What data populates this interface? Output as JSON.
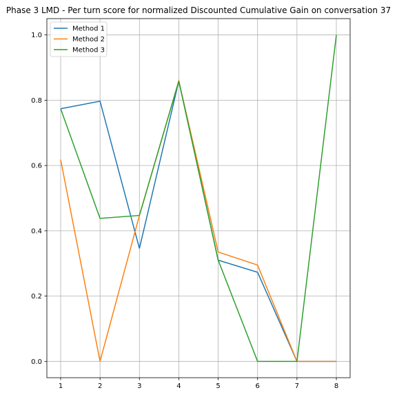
{
  "chart_data": {
    "type": "line",
    "title": "Phase 3 LMD - Per turn score for normalized Discounted Cumulative Gain on conversation 37",
    "xlabel": "",
    "ylabel": "",
    "x": [
      1,
      2,
      3,
      4,
      5,
      6,
      7,
      8
    ],
    "xlim": [
      0.65,
      8.35
    ],
    "ylim": [
      -0.05,
      1.05
    ],
    "xticks": [
      1,
      2,
      3,
      4,
      5,
      6,
      7,
      8
    ],
    "yticks": [
      0.0,
      0.2,
      0.4,
      0.6,
      0.8,
      1.0
    ],
    "ytick_labels": [
      "0.0",
      "0.2",
      "0.4",
      "0.6",
      "0.8",
      "1.0"
    ],
    "grid": true,
    "legend_position": "upper left",
    "series": [
      {
        "name": "Method 1",
        "color": "#1f77b4",
        "values": [
          0.774,
          0.797,
          0.346,
          0.859,
          0.31,
          0.273,
          0.0,
          0.0
        ]
      },
      {
        "name": "Method 2",
        "color": "#ff7f0e",
        "values": [
          0.618,
          0.0,
          0.447,
          0.859,
          0.335,
          0.295,
          0.0,
          0.0
        ]
      },
      {
        "name": "Method 3",
        "color": "#2ca02c",
        "values": [
          0.774,
          0.438,
          0.447,
          0.859,
          0.31,
          0.0,
          0.0,
          1.0
        ]
      }
    ]
  }
}
